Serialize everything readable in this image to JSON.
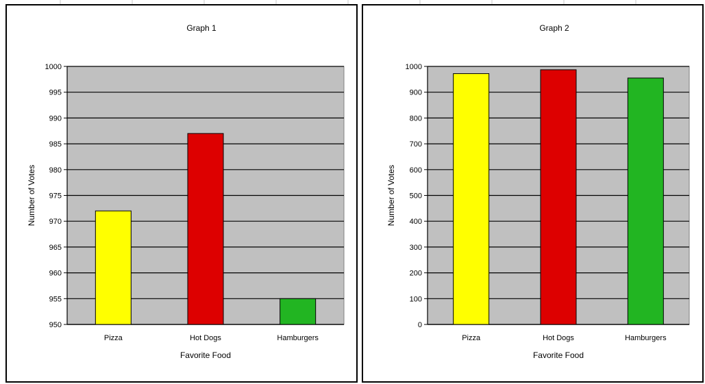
{
  "chart_data": [
    {
      "type": "bar",
      "title": "Graph 1",
      "xlabel": "Favorite Food",
      "ylabel": "Number of Votes",
      "categories": [
        "Pizza",
        "Hot Dogs",
        "Hamburgers"
      ],
      "values": [
        972,
        987,
        955
      ],
      "colors": [
        "#ffff00",
        "#dd0000",
        "#22b522"
      ],
      "ylim": [
        950,
        1000
      ],
      "yticks": [
        950,
        955,
        960,
        965,
        970,
        975,
        980,
        985,
        990,
        995,
        1000
      ],
      "plot_background": "#c0c0c0",
      "grid": true,
      "legend": false
    },
    {
      "type": "bar",
      "title": "Graph 2",
      "xlabel": "Favorite Food",
      "ylabel": "Number of Votes",
      "categories": [
        "Pizza",
        "Hot Dogs",
        "Hamburgers"
      ],
      "values": [
        972,
        987,
        955
      ],
      "colors": [
        "#ffff00",
        "#dd0000",
        "#22b522"
      ],
      "ylim": [
        0,
        1000
      ],
      "yticks": [
        0,
        100,
        200,
        300,
        400,
        500,
        600,
        700,
        800,
        900,
        1000
      ],
      "plot_background": "#c0c0c0",
      "grid": true,
      "legend": false
    }
  ]
}
